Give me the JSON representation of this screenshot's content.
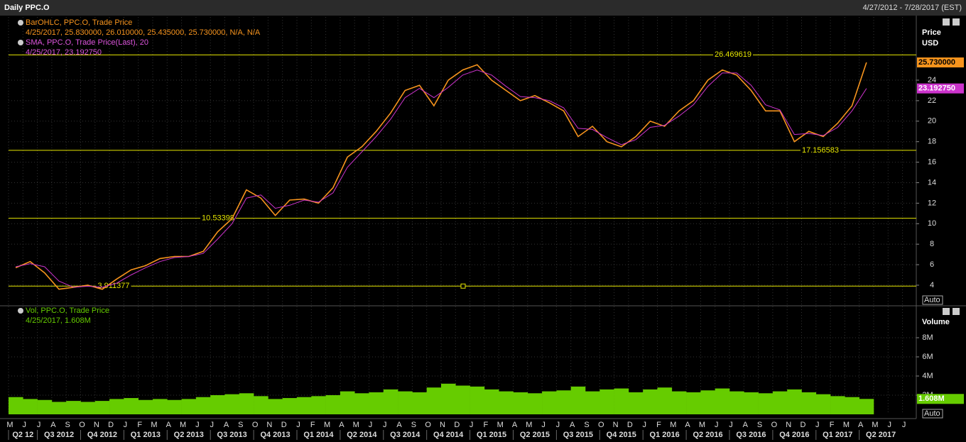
{
  "header": {
    "title": "Daily PPC.O",
    "range": "4/27/2012 - 7/28/2017 (EST)"
  },
  "chart_data": {
    "type": "line",
    "price_legend": {
      "line1": "BarOHLC, PPC.O, Trade Price",
      "line2": "4/25/2017, 25.830000, 26.010000, 25.435000, 25.730000, N/A, N/A",
      "line3": "SMA, PPC.O, Trade Price(Last), 20",
      "line4": "4/25/2017, 23.192750"
    },
    "volume_legend": {
      "line1": "Vol, PPC.O, Trade Price",
      "line2": "4/25/2017, 1.608M"
    },
    "y_title": "Price",
    "y_unit": "USD",
    "y2_title": "Volume",
    "auto_button": "Auto",
    "categories": [
      "M",
      "J",
      "J",
      "A",
      "S",
      "O",
      "N",
      "D",
      "J",
      "F",
      "M",
      "A",
      "M",
      "J",
      "J",
      "A",
      "S",
      "O",
      "N",
      "D",
      "J",
      "F",
      "M",
      "A",
      "M",
      "J",
      "J",
      "A",
      "S",
      "O",
      "N",
      "D",
      "J",
      "F",
      "M",
      "A",
      "M",
      "J",
      "J",
      "A",
      "S",
      "O",
      "N",
      "D",
      "J",
      "F",
      "M",
      "A",
      "M",
      "J",
      "J",
      "A",
      "S",
      "O",
      "N",
      "D",
      "J",
      "F",
      "M",
      "A",
      "M",
      "J",
      "J"
    ],
    "quarters": [
      "Q2 12",
      "Q3 2012",
      "Q4 2012",
      "Q1 2013",
      "Q2 2013",
      "Q3 2013",
      "Q4 2013",
      "Q1 2014",
      "Q2 2014",
      "Q3 2014",
      "Q4 2014",
      "Q1 2015",
      "Q2 2015",
      "Q3 2015",
      "Q4 2015",
      "Q1 2016",
      "Q2 2016",
      "Q3 2016",
      "Q4 2016",
      "Q1 2017",
      "Q2 2017"
    ],
    "series": [
      {
        "name": "BarOHLC, PPC.O, Trade Price",
        "color": "#f7941d",
        "values": [
          5.7,
          6.3,
          5.2,
          3.6,
          3.8,
          4.0,
          3.6,
          4.6,
          5.5,
          5.9,
          6.6,
          6.8,
          6.8,
          7.3,
          9.2,
          10.5,
          13.3,
          12.5,
          10.8,
          12.3,
          12.4,
          12.0,
          13.5,
          16.5,
          17.5,
          19.0,
          20.8,
          23.0,
          23.5,
          21.5,
          24.0,
          25.0,
          25.5,
          24.0,
          23.0,
          22.0,
          22.5,
          21.8,
          21.0,
          18.5,
          19.5,
          18.0,
          17.5,
          18.5,
          20.0,
          19.5,
          21.0,
          22.0,
          24.0,
          25.0,
          24.5,
          23.0,
          21.0,
          21.0,
          18.0,
          19.0,
          18.5,
          19.8,
          21.5,
          25.73,
          null,
          null,
          null
        ]
      },
      {
        "name": "SMA, PPC.O, Trade Price(Last), 20",
        "color": "#cc33cc",
        "values": [
          5.8,
          6.1,
          5.8,
          4.4,
          3.8,
          3.9,
          3.8,
          4.2,
          5.0,
          5.7,
          6.3,
          6.7,
          6.8,
          7.1,
          8.5,
          10.0,
          12.5,
          12.8,
          11.5,
          11.8,
          12.3,
          12.1,
          13.0,
          15.5,
          17.0,
          18.5,
          20.2,
          22.3,
          23.2,
          22.3,
          23.3,
          24.5,
          25.0,
          24.5,
          23.4,
          22.4,
          22.3,
          22.0,
          21.3,
          19.3,
          19.2,
          18.4,
          17.7,
          18.2,
          19.4,
          19.6,
          20.5,
          21.6,
          23.4,
          24.7,
          24.7,
          23.5,
          21.6,
          21.1,
          18.7,
          18.8,
          18.6,
          19.4,
          21.0,
          23.19275,
          null,
          null,
          null
        ]
      },
      {
        "name": "Vol, PPC.O, Trade Price",
        "color": "#66cc00",
        "axis": "y2",
        "values": [
          1800000,
          1600000,
          1500000,
          1300000,
          1400000,
          1300000,
          1400000,
          1600000,
          1700000,
          1500000,
          1600000,
          1500000,
          1600000,
          1800000,
          2000000,
          2100000,
          2200000,
          1900000,
          1600000,
          1700000,
          1800000,
          1900000,
          2000000,
          2400000,
          2200000,
          2300000,
          2600000,
          2400000,
          2300000,
          2800000,
          3200000,
          3000000,
          2900000,
          2600000,
          2400000,
          2300000,
          2200000,
          2400000,
          2500000,
          2900000,
          2400000,
          2600000,
          2700000,
          2300000,
          2600000,
          2800000,
          2400000,
          2300000,
          2500000,
          2700000,
          2400000,
          2300000,
          2200000,
          2400000,
          2600000,
          2300000,
          2100000,
          1900000,
          1800000,
          1608000,
          null,
          null,
          null
        ]
      }
    ],
    "levels": [
      26.469619,
      17.156583,
      10.53398,
      3.911377
    ],
    "level_color": "#e6e600",
    "last_price": {
      "value": 25.73,
      "label": "25.730000"
    },
    "last_sma": {
      "value": 23.19275,
      "label": "23.192750"
    },
    "last_volume": {
      "value": 1608000,
      "label": "1.608M"
    },
    "ylim": [
      2.06,
      30.16
    ],
    "yticks": [
      4,
      6,
      8,
      10,
      12,
      14,
      16,
      18,
      20,
      22,
      24
    ],
    "y2lim": [
      0,
      11260000
    ],
    "y2ticks": [
      {
        "value": 2000000,
        "label": "2M"
      },
      {
        "value": 4000000,
        "label": "4M"
      },
      {
        "value": 6000000,
        "label": "6M"
      },
      {
        "value": 8000000,
        "label": "8M"
      }
    ],
    "grid": true
  }
}
